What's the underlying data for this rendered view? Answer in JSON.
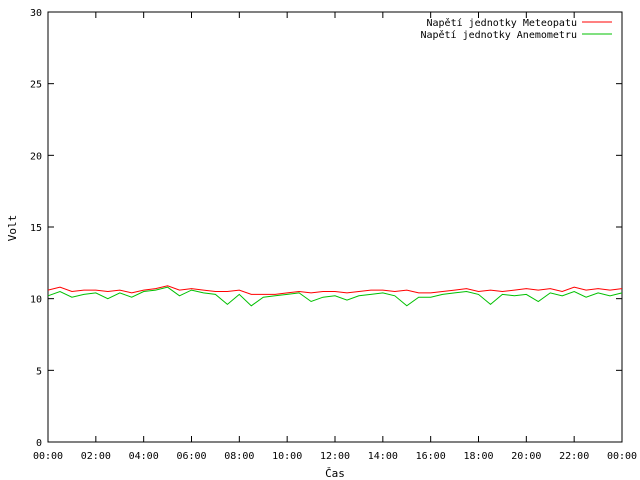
{
  "chart_data": {
    "type": "line",
    "xlabel": "Čas",
    "ylabel": "Volt",
    "ylim": [
      0,
      30
    ],
    "yticks": [
      "0",
      "5",
      "10",
      "15",
      "20",
      "25",
      "30"
    ],
    "xlim": [
      0,
      24
    ],
    "xticks": [
      "00:00",
      "02:00",
      "04:00",
      "06:00",
      "08:00",
      "10:00",
      "12:00",
      "14:00",
      "16:00",
      "18:00",
      "20:00",
      "22:00",
      "00:00"
    ],
    "grid": false,
    "legend_position": "top-right",
    "series": [
      {
        "name": "Napětí jednotky Meteopatu",
        "color": "#ff0000",
        "x": [
          0,
          0.5,
          1,
          1.5,
          2,
          2.5,
          3,
          3.5,
          4,
          4.5,
          5,
          5.5,
          6,
          6.5,
          7,
          7.5,
          8,
          8.5,
          9,
          9.5,
          10,
          10.5,
          11,
          11.5,
          12,
          12.5,
          13,
          13.5,
          14,
          14.5,
          15,
          15.5,
          16,
          16.5,
          17,
          17.5,
          18,
          18.5,
          19,
          19.5,
          20,
          20.5,
          21,
          21.5,
          22,
          22.5,
          23,
          23.5,
          24
        ],
        "values": [
          10.6,
          10.8,
          10.5,
          10.6,
          10.6,
          10.5,
          10.6,
          10.4,
          10.6,
          10.7,
          10.9,
          10.6,
          10.7,
          10.6,
          10.5,
          10.5,
          10.6,
          10.3,
          10.3,
          10.3,
          10.4,
          10.5,
          10.4,
          10.5,
          10.5,
          10.4,
          10.5,
          10.6,
          10.6,
          10.5,
          10.6,
          10.4,
          10.4,
          10.5,
          10.6,
          10.7,
          10.5,
          10.6,
          10.5,
          10.6,
          10.7,
          10.6,
          10.7,
          10.5,
          10.8,
          10.6,
          10.7,
          10.6,
          10.7
        ]
      },
      {
        "name": "Napětí jednotky Anemometru",
        "color": "#00c000",
        "x": [
          0,
          0.5,
          1,
          1.5,
          2,
          2.5,
          3,
          3.5,
          4,
          4.5,
          5,
          5.5,
          6,
          6.5,
          7,
          7.5,
          8,
          8.5,
          9,
          9.5,
          10,
          10.5,
          11,
          11.5,
          12,
          12.5,
          13,
          13.5,
          14,
          14.5,
          15,
          15.5,
          16,
          16.5,
          17,
          17.5,
          18,
          18.5,
          19,
          19.5,
          20,
          20.5,
          21,
          21.5,
          22,
          22.5,
          23,
          23.5,
          24
        ],
        "values": [
          10.2,
          10.5,
          10.1,
          10.3,
          10.4,
          10.0,
          10.4,
          10.1,
          10.5,
          10.6,
          10.8,
          10.2,
          10.6,
          10.4,
          10.3,
          9.6,
          10.3,
          9.5,
          10.1,
          10.2,
          10.3,
          10.4,
          9.8,
          10.1,
          10.2,
          9.9,
          10.2,
          10.3,
          10.4,
          10.2,
          9.5,
          10.1,
          10.1,
          10.3,
          10.4,
          10.5,
          10.3,
          9.6,
          10.3,
          10.2,
          10.3,
          9.8,
          10.4,
          10.2,
          10.5,
          10.1,
          10.4,
          10.2,
          10.4
        ]
      }
    ]
  }
}
